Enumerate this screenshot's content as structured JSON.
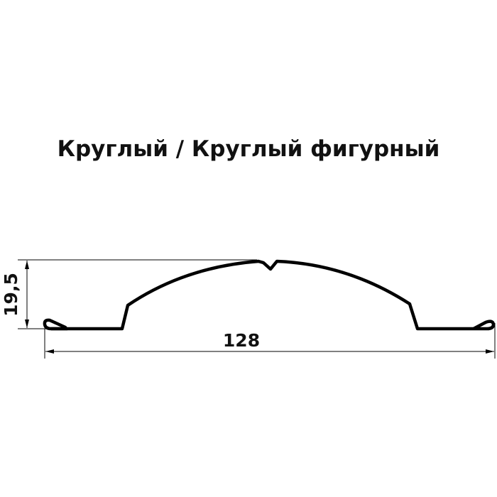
{
  "title": "Круглый / Круглый фигурный",
  "dimensions": {
    "height": "19,5",
    "width": "128"
  },
  "colors": {
    "line": "#000000",
    "text": "#111111"
  }
}
